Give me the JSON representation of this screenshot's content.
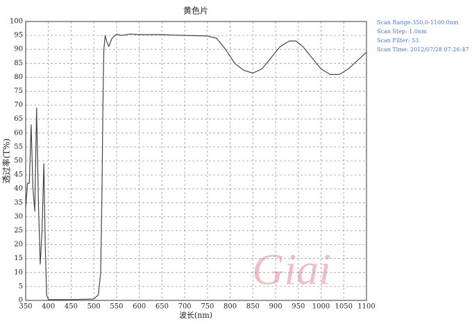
{
  "chart_data": {
    "type": "line",
    "title": "黄色片",
    "x_label": "波长(nm)",
    "y_label": "透过率(T%)",
    "annotations": [
      "Scan Range:350.0-1100.0nm",
      "Scan Step:  1.0nm",
      "Scan Filter:  53",
      "Scan Time:  2012/07/28  07:26:47"
    ],
    "watermark": "Giai",
    "x": [
      350,
      354,
      358,
      362,
      366,
      370,
      374,
      378,
      382,
      386,
      390,
      393,
      396,
      400,
      450,
      500,
      510,
      515,
      518,
      520,
      522,
      525,
      528,
      533,
      540,
      550,
      560,
      580,
      600,
      650,
      700,
      750,
      770,
      790,
      810,
      830,
      850,
      870,
      890,
      910,
      930,
      945,
      960,
      980,
      1000,
      1020,
      1040,
      1060,
      1080,
      1100
    ],
    "series": [
      {
        "name": "T%",
        "color": "#444444",
        "values": [
          33,
          42,
          42,
          63,
          40,
          32,
          69,
          35,
          13,
          25,
          49,
          20,
          2,
          0.3,
          0.3,
          0.5,
          2,
          10,
          40,
          70,
          90,
          95,
          93,
          91,
          94,
          95.5,
          95,
          95.5,
          95.3,
          95.3,
          95,
          94.8,
          94,
          90,
          85,
          82.5,
          81.5,
          83,
          87,
          91,
          93,
          93,
          91,
          87,
          83,
          81,
          81,
          83,
          86,
          89
        ]
      }
    ],
    "xlim": [
      350,
      1100
    ],
    "ylim": [
      0,
      100
    ],
    "xticks": [
      350,
      400,
      450,
      500,
      550,
      600,
      650,
      700,
      750,
      800,
      850,
      900,
      950,
      1000,
      1050,
      1100
    ],
    "yticks": [
      0,
      5,
      10,
      15,
      20,
      25,
      30,
      35,
      40,
      45,
      50,
      55,
      60,
      65,
      70,
      75,
      80,
      85,
      90,
      95,
      100
    ],
    "grid": true
  }
}
